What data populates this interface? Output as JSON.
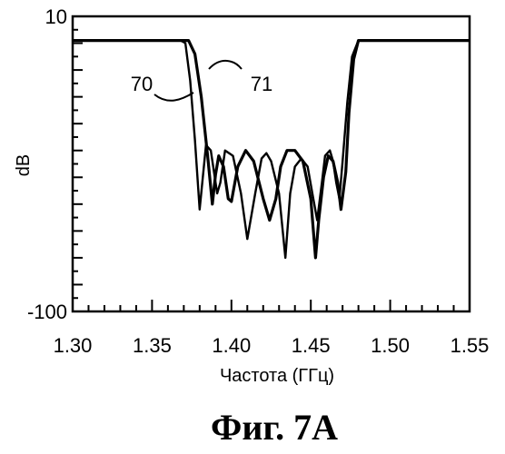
{
  "chart_data": {
    "type": "line",
    "title": "",
    "xlabel": "Частота (ГГц)",
    "ylabel": "dB",
    "xlim": [
      1.3,
      1.55
    ],
    "ylim": [
      -100,
      10
    ],
    "x_ticks": [
      "1.30",
      "1.35",
      "1.40",
      "1.45",
      "1.50",
      "1.55"
    ],
    "y_ticks": [
      "10",
      "-100"
    ],
    "grid": false,
    "series": [
      {
        "name": "70",
        "x": [
          1.3,
          1.368,
          1.371,
          1.374,
          1.377,
          1.38,
          1.382,
          1.384,
          1.387,
          1.391,
          1.393,
          1.396,
          1.401,
          1.406,
          1.41,
          1.415,
          1.419,
          1.422,
          1.425,
          1.43,
          1.434,
          1.437,
          1.44,
          1.444,
          1.448,
          1.451,
          1.454,
          1.457,
          1.459,
          1.462,
          1.464,
          1.466,
          1.468,
          1.47,
          1.473,
          1.476,
          1.48,
          1.55
        ],
        "y": [
          1,
          1,
          0,
          -14,
          -36,
          -62,
          -50,
          -38,
          -40,
          -56,
          -52,
          -40,
          -42,
          -56,
          -73,
          -56,
          -43,
          -41,
          -44,
          -56,
          -80,
          -56,
          -46,
          -43,
          -46,
          -56,
          -66,
          -52,
          -42,
          -40,
          -44,
          -52,
          -58,
          -44,
          -22,
          -5,
          1,
          1
        ]
      },
      {
        "name": "71",
        "x": [
          1.3,
          1.373,
          1.377,
          1.381,
          1.385,
          1.388,
          1.39,
          1.392,
          1.395,
          1.398,
          1.4,
          1.404,
          1.409,
          1.414,
          1.42,
          1.424,
          1.428,
          1.431,
          1.435,
          1.44,
          1.445,
          1.45,
          1.453,
          1.455,
          1.458,
          1.461,
          1.464,
          1.467,
          1.469,
          1.472,
          1.474,
          1.477,
          1.48,
          1.483,
          1.55
        ],
        "y": [
          1,
          1,
          -4,
          -20,
          -42,
          -60,
          -49,
          -42,
          -46,
          -58,
          -59,
          -46,
          -40,
          -44,
          -58,
          -66,
          -58,
          -46,
          -40,
          -40,
          -44,
          -58,
          -80,
          -66,
          -50,
          -42,
          -44,
          -52,
          -62,
          -48,
          -26,
          -6,
          1,
          1,
          1
        ]
      }
    ],
    "annotations": [
      {
        "text": "70",
        "points_to": "70"
      },
      {
        "text": "71",
        "points_to": "71"
      }
    ]
  },
  "figure_caption": "Фиг. 7A"
}
